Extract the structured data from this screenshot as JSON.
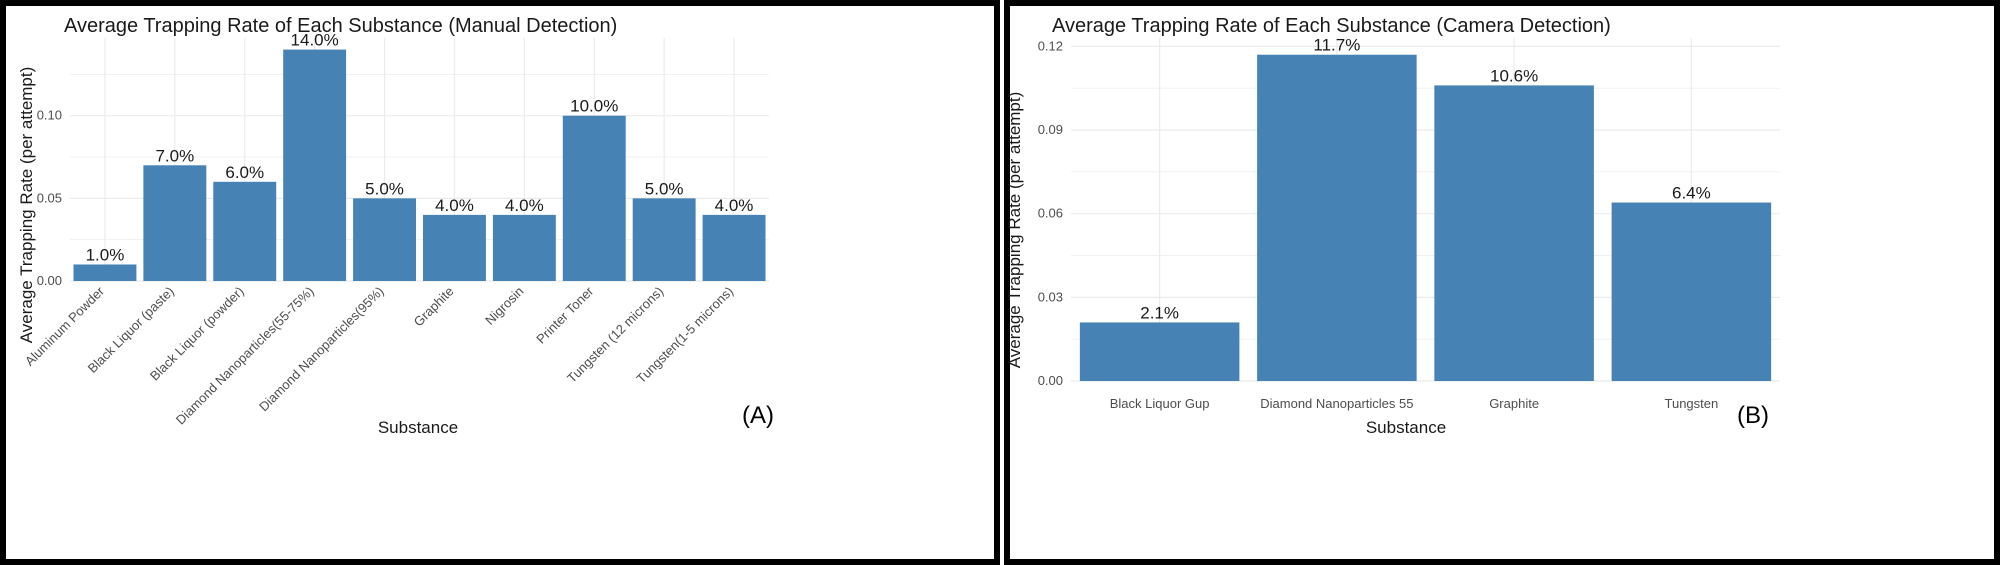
{
  "chart_data": [
    {
      "type": "bar",
      "panel_tag": "(A)",
      "title": "Average Trapping Rate of Each Substance (Manual Detection)",
      "xlabel": "Substance",
      "ylabel": "Average Trapping Rate (per attempt)",
      "categories": [
        "Aluminum Powder",
        "Black Liquor (paste)",
        "Black Liquor (powder)",
        "Diamond Nanoparticles(55-75%)",
        "Diamond Nanoparticles(95%)",
        "Graphite",
        "Nigrosin",
        "Printer Toner",
        "Tungsten (12 microns)",
        "Tungsten(1-5 microns)"
      ],
      "values": [
        0.01,
        0.07,
        0.06,
        0.14,
        0.05,
        0.04,
        0.04,
        0.1,
        0.05,
        0.04
      ],
      "data_labels": [
        "1.0%",
        "7.0%",
        "6.0%",
        "14.0%",
        "5.0%",
        "4.0%",
        "4.0%",
        "10.0%",
        "5.0%",
        "4.0%"
      ],
      "yticks": [
        0.0,
        0.05,
        0.1
      ],
      "ytick_labels": [
        "0.00",
        "0.05",
        "0.10"
      ],
      "ylim": [
        0,
        0.147
      ],
      "x_labels_rotated": true,
      "bar_color": "#4682b4",
      "grid": true
    },
    {
      "type": "bar",
      "panel_tag": "(B)",
      "title": "Average Trapping Rate of Each Substance (Camera Detection)",
      "xlabel": "Substance",
      "ylabel": "Average Trapping Rate (per attempt)",
      "categories": [
        "Black Liquor Gup",
        "Diamond Nanoparticles 55",
        "Graphite",
        "Tungsten"
      ],
      "values": [
        0.021,
        0.117,
        0.106,
        0.064
      ],
      "data_labels": [
        "2.1%",
        "11.7%",
        "10.6%",
        "6.4%"
      ],
      "yticks": [
        0.0,
        0.03,
        0.06,
        0.09,
        0.12
      ],
      "ytick_labels": [
        "0.00",
        "0.03",
        "0.06",
        "0.09",
        "0.12"
      ],
      "ylim": [
        0,
        0.123
      ],
      "x_labels_rotated": false,
      "bar_color": "#4682b4",
      "grid": true
    }
  ]
}
